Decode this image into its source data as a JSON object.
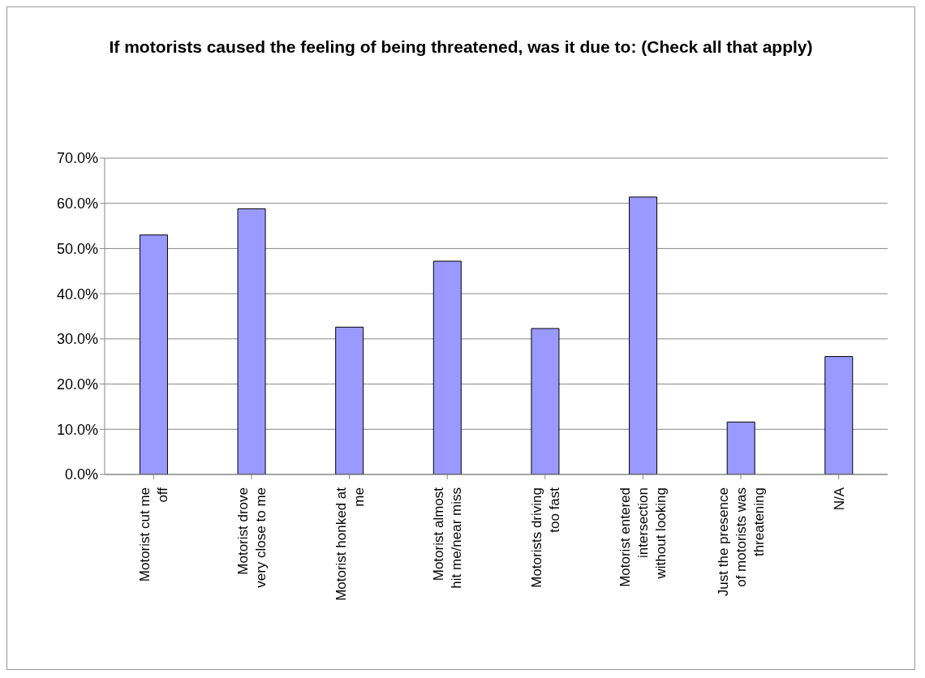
{
  "chart_data": {
    "type": "bar",
    "title": "If motorists caused the feeling of being threatened, was it due to: (Check all that apply)",
    "categories": [
      "Motorist cut me off",
      "Motorist drove very close to me",
      "Motorist honked at me",
      "Motorist almost hit me/near miss",
      "Motorists driving too fast",
      "Motorist entered intersection without looking",
      "Just the presence of motorists was threatening",
      "N/A"
    ],
    "values": [
      53.0,
      58.8,
      32.6,
      47.2,
      32.3,
      61.4,
      11.6,
      26.1
    ],
    "color": "#9999ff",
    "ylim": [
      0,
      70
    ],
    "yticks": [
      {
        "value": 0,
        "label": "0.0%"
      },
      {
        "value": 10,
        "label": "10.0%"
      },
      {
        "value": 20,
        "label": "20.0%"
      },
      {
        "value": 30,
        "label": "30.0%"
      },
      {
        "value": 40,
        "label": "40.0%"
      },
      {
        "value": 50,
        "label": "50.0%"
      },
      {
        "value": 60,
        "label": "60.0%"
      },
      {
        "value": 70,
        "label": "70.0%"
      }
    ],
    "grid": "y",
    "legend": false
  }
}
